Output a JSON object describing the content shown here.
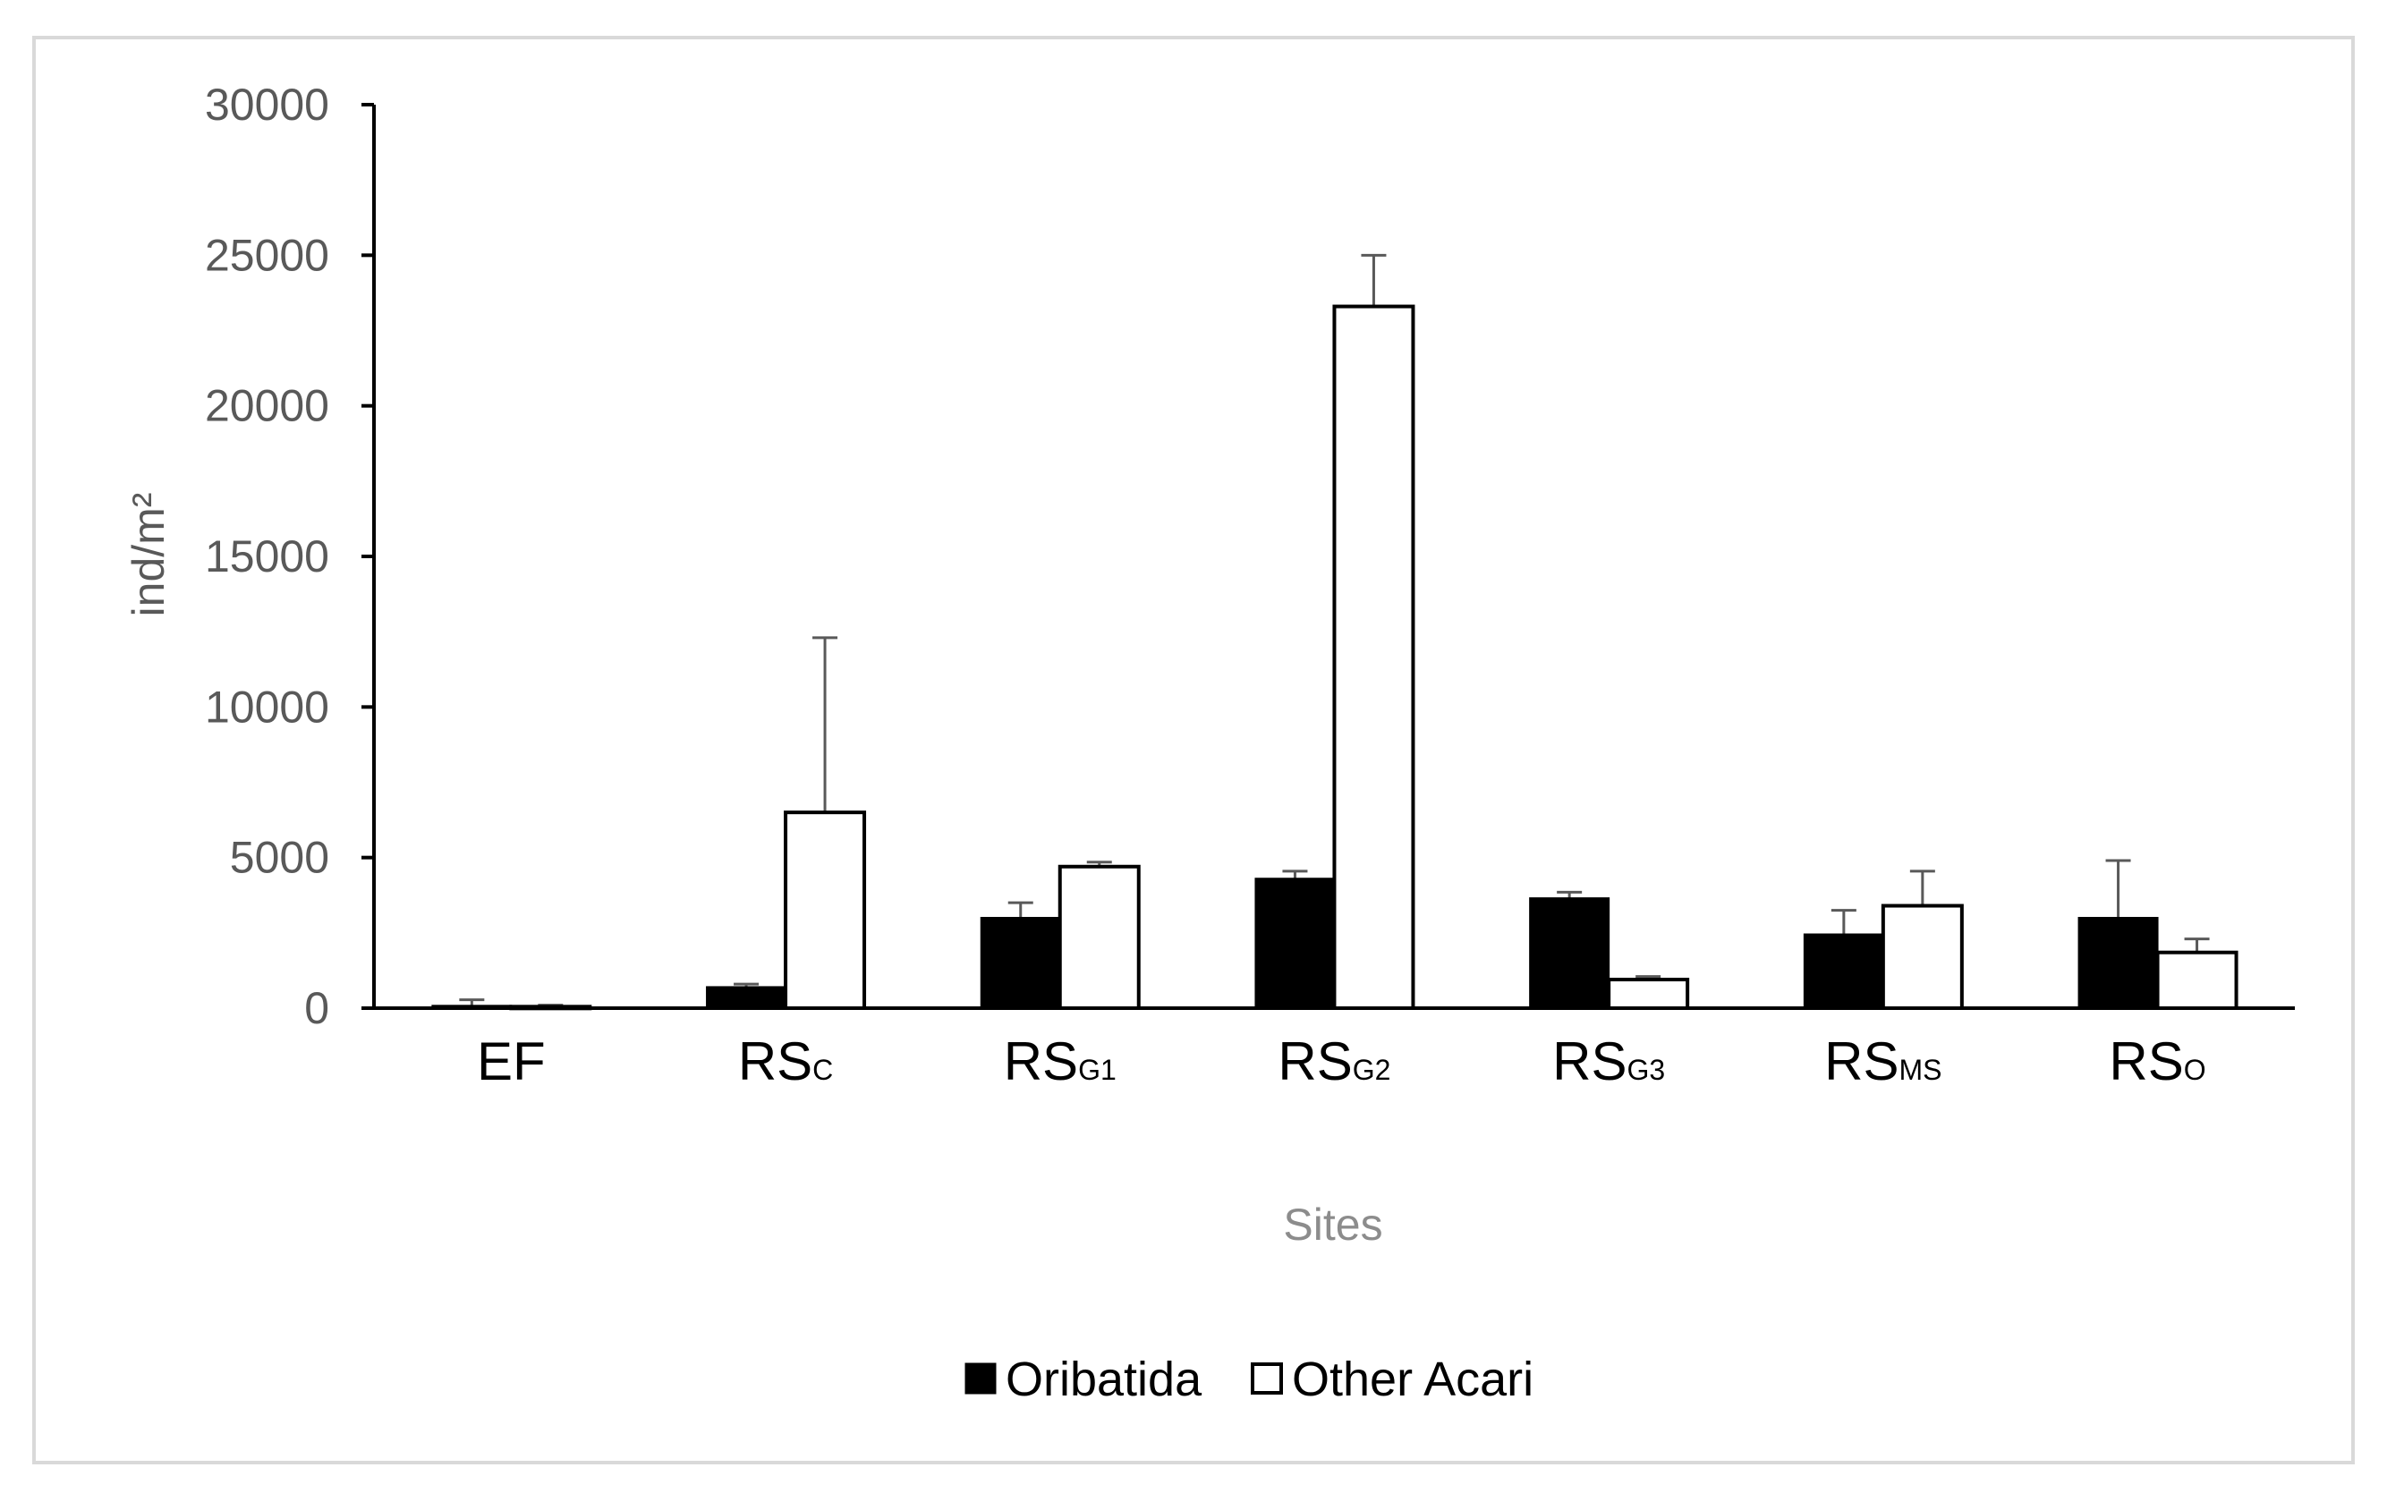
{
  "chart_data": {
    "type": "bar",
    "title": "",
    "xlabel": "Sites",
    "ylabel": "ind/m²",
    "ylim": [
      0,
      30000
    ],
    "yticks": [
      "0",
      "5000",
      "10000",
      "15000",
      "20000",
      "25000",
      "30000"
    ],
    "categories": [
      {
        "main": "EF",
        "sub": ""
      },
      {
        "main": "RS",
        "sub": "C"
      },
      {
        "main": "RS",
        "sub": "G1"
      },
      {
        "main": "RS",
        "sub": "G2"
      },
      {
        "main": "RS",
        "sub": "G3"
      },
      {
        "main": "RS",
        "sub": "MS"
      },
      {
        "main": "RS",
        "sub": "O"
      }
    ],
    "series": [
      {
        "name": "Oribatida",
        "color": "#000000",
        "values": [
          80,
          700,
          3000,
          4300,
          3650,
          2450,
          3000
        ],
        "errors": [
          200,
          100,
          500,
          250,
          200,
          800,
          1900
        ]
      },
      {
        "name": "Other Acari",
        "color": "#ffffff",
        "values": [
          50,
          6500,
          4700,
          23300,
          950,
          3400,
          1850
        ],
        "errors": [
          50,
          5800,
          150,
          1700,
          100,
          1150,
          450
        ]
      }
    ],
    "grid": false,
    "legend_position": "bottom-center"
  }
}
